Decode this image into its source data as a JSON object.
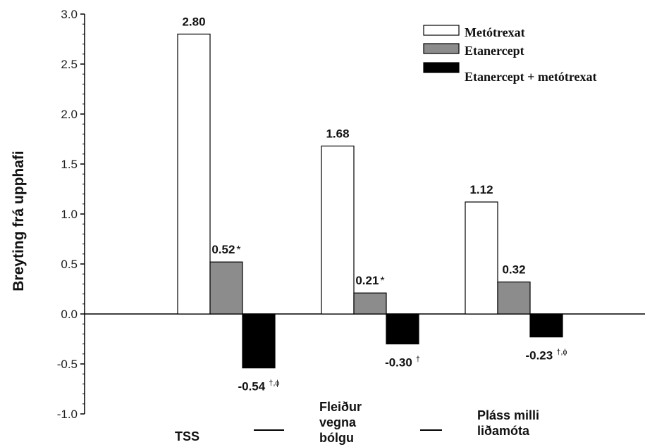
{
  "chart_data": {
    "type": "bar",
    "title": "",
    "xlabel": "",
    "ylabel": "Breyting frá upphafi",
    "ylim": [
      -1.0,
      3.0
    ],
    "yticks": [
      "3.0",
      "2.5",
      "2.0",
      "1.5",
      "1.0",
      "0.5",
      "0.0",
      "-0.5",
      "-1.0"
    ],
    "grid": false,
    "legend_position": "top-right",
    "categories": [
      {
        "lines": [
          "TSS"
        ]
      },
      {
        "lines": [
          "Fleiður",
          "vegna",
          "bólgu"
        ]
      },
      {
        "lines": [
          "Pláss milli",
          "liðamóta"
        ]
      }
    ],
    "series": [
      {
        "name": "Metótrexat",
        "color": "#ffffff",
        "values": [
          2.8,
          1.68,
          1.12
        ],
        "labels": [
          "2.80",
          "1.68",
          "1.12"
        ],
        "label_marks": [
          "",
          "",
          ""
        ]
      },
      {
        "name": "Etanercept",
        "color": "#8c8c8c",
        "values": [
          0.52,
          0.21,
          0.32
        ],
        "labels": [
          "0.52",
          "0.21",
          "0.32"
        ],
        "label_marks": [
          "*",
          "*",
          ""
        ]
      },
      {
        "name": "Etanercept + metótrexat",
        "color": "#000000",
        "values": [
          -0.54,
          -0.3,
          -0.23
        ],
        "labels": [
          "-0.54",
          "-0.30",
          "-0.23"
        ],
        "label_marks": [
          "†,ϕ",
          "†",
          "†,ϕ"
        ]
      }
    ]
  }
}
